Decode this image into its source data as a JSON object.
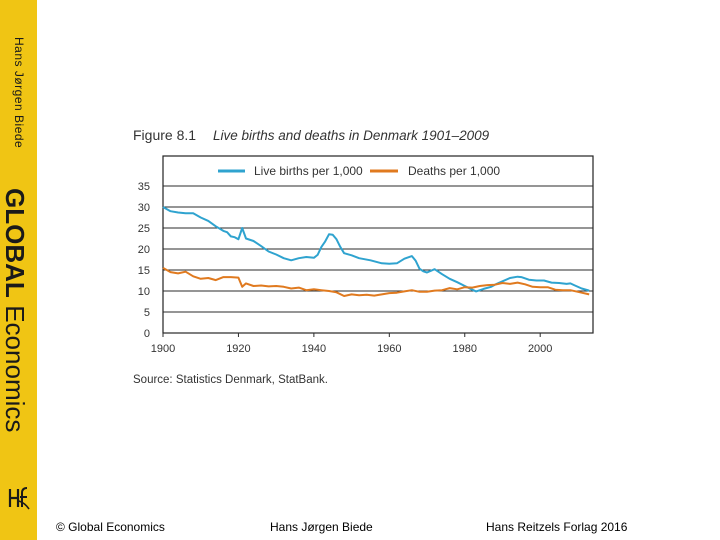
{
  "sidebar": {
    "author": "Hans Jørgen Biede",
    "title_bold": "GLOBAL",
    "title_regular": "Economics",
    "colors": {
      "background": "#f0c514",
      "text": "#1a1a1a"
    }
  },
  "chart_data": {
    "type": "line",
    "figure_label": "Figure 8.1",
    "title": "Live births and deaths in Denmark 1901–2009",
    "source": "Source: Statistics Denmark, StatBank.",
    "xlabel": "",
    "ylabel": "",
    "xlim": [
      1900,
      2014
    ],
    "ylim": [
      0,
      35
    ],
    "x_ticks": [
      "1900",
      "1920",
      "1940",
      "1960",
      "1980",
      "2000"
    ],
    "y_ticks": [
      "35",
      "30",
      "25",
      "20",
      "15",
      "10",
      "5",
      "0"
    ],
    "legend_position": "top",
    "grid": true,
    "series": [
      {
        "name": "Live births per 1,000",
        "color": "#2fa3cf",
        "x": [
          1900,
          1902,
          1904,
          1906,
          1908,
          1910,
          1912,
          1914,
          1916,
          1917,
          1918,
          1919,
          1920,
          1921,
          1922,
          1924,
          1926,
          1928,
          1930,
          1932,
          1934,
          1936,
          1938,
          1940,
          1941,
          1942,
          1943,
          1944,
          1945,
          1946,
          1947,
          1948,
          1950,
          1952,
          1955,
          1958,
          1960,
          1962,
          1964,
          1966,
          1967,
          1968,
          1969,
          1970,
          1972,
          1974,
          1976,
          1978,
          1980,
          1982,
          1983,
          1985,
          1987,
          1988,
          1990,
          1992,
          1994,
          1995,
          1997,
          1999,
          2001,
          2003,
          2005,
          2007,
          2008,
          2009,
          2011,
          2013
        ],
        "values": [
          30,
          29,
          28.7,
          28.5,
          28.5,
          27.5,
          26.7,
          25.4,
          24.3,
          24,
          23,
          22.8,
          22.3,
          25,
          22.5,
          21.9,
          20.7,
          19.4,
          18.7,
          17.8,
          17.3,
          17.8,
          18.1,
          17.9,
          18.6,
          20.5,
          21.8,
          23.5,
          23.4,
          22.3,
          20.5,
          19.0,
          18.5,
          17.8,
          17.3,
          16.6,
          16.5,
          16.6,
          17.7,
          18.3,
          17.2,
          15.3,
          14.7,
          14.4,
          15.2,
          14.0,
          12.9,
          12.1,
          11.2,
          10.3,
          9.9,
          10.5,
          11.0,
          11.5,
          12.3,
          13.1,
          13.4,
          13.3,
          12.7,
          12.5,
          12.5,
          12.0,
          11.9,
          11.7,
          11.8,
          11.4,
          10.6,
          10.1
        ]
      },
      {
        "name": "Deaths per 1,000",
        "color": "#e07a1f",
        "x": [
          1900,
          1902,
          1904,
          1906,
          1908,
          1910,
          1912,
          1914,
          1916,
          1918,
          1920,
          1921,
          1922,
          1924,
          1926,
          1928,
          1930,
          1932,
          1934,
          1936,
          1938,
          1940,
          1942,
          1944,
          1946,
          1948,
          1950,
          1952,
          1954,
          1956,
          1958,
          1960,
          1962,
          1964,
          1966,
          1968,
          1970,
          1972,
          1974,
          1976,
          1978,
          1980,
          1982,
          1984,
          1986,
          1988,
          1990,
          1992,
          1994,
          1996,
          1998,
          2000,
          2002,
          2004,
          2006,
          2008,
          2010,
          2013
        ],
        "values": [
          15.5,
          14.5,
          14.2,
          14.6,
          13.5,
          12.9,
          13.1,
          12.6,
          13.3,
          13.3,
          13.2,
          11.0,
          11.8,
          11.2,
          11.3,
          11.1,
          11.2,
          11.0,
          10.6,
          10.8,
          10.2,
          10.4,
          10.2,
          10.0,
          9.7,
          8.8,
          9.2,
          9.0,
          9.1,
          8.9,
          9.2,
          9.5,
          9.6,
          9.9,
          10.2,
          9.8,
          9.8,
          10.1,
          10.2,
          10.7,
          10.4,
          10.9,
          10.8,
          11.2,
          11.4,
          11.5,
          11.9,
          11.7,
          12.0,
          11.6,
          11.0,
          10.9,
          10.9,
          10.3,
          10.2,
          10.2,
          9.8,
          9.2
        ]
      }
    ]
  },
  "footer": {
    "left": "© Global Economics",
    "center": "Hans Jørgen Biede",
    "right": "Hans Reitzels Forlag 2016"
  }
}
